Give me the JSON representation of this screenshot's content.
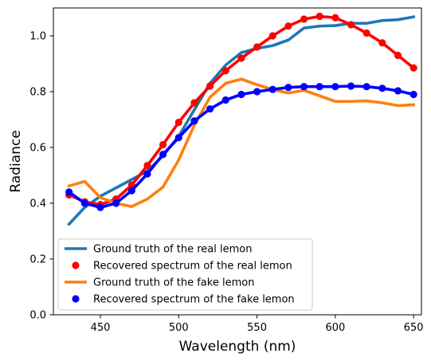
{
  "chart_data": {
    "type": "line",
    "title": "",
    "xlabel": "Wavelength (nm)",
    "ylabel": "Radiance",
    "xlim": [
      420,
      655
    ],
    "ylim": [
      0.0,
      1.1
    ],
    "xticks": [
      450,
      500,
      550,
      600,
      650
    ],
    "yticks": [
      0.0,
      0.2,
      0.4,
      0.6,
      0.8,
      1.0
    ],
    "xtick_labels": [
      "450",
      "500",
      "550",
      "600",
      "650"
    ],
    "ytick_labels": [
      "0.0",
      "0.2",
      "0.4",
      "0.6",
      "0.8",
      "1.0"
    ],
    "grid": false,
    "legend_position": "lower-left",
    "series": [
      {
        "name": "Ground truth of the real lemon",
        "style": "line",
        "color": "#1f77b4",
        "x": [
          430,
          440,
          450,
          460,
          470,
          480,
          490,
          500,
          510,
          520,
          530,
          540,
          550,
          560,
          570,
          580,
          590,
          600,
          610,
          620,
          630,
          640,
          650
        ],
        "y": [
          0.325,
          0.385,
          0.425,
          0.455,
          0.485,
          0.515,
          0.57,
          0.64,
          0.735,
          0.83,
          0.895,
          0.94,
          0.955,
          0.965,
          0.985,
          1.028,
          1.035,
          1.037,
          1.045,
          1.045,
          1.055,
          1.058,
          1.068
        ]
      },
      {
        "name": "Recovered spectrum of the real lemon",
        "style": "line-markers",
        "color": "#ff0000",
        "x": [
          430,
          440,
          450,
          460,
          470,
          480,
          490,
          500,
          510,
          520,
          530,
          540,
          550,
          560,
          570,
          580,
          590,
          600,
          610,
          620,
          630,
          640,
          650
        ],
        "y": [
          0.43,
          0.405,
          0.395,
          0.415,
          0.465,
          0.535,
          0.61,
          0.69,
          0.76,
          0.82,
          0.875,
          0.92,
          0.96,
          1.0,
          1.035,
          1.06,
          1.07,
          1.065,
          1.04,
          1.01,
          0.975,
          0.93,
          0.885
        ]
      },
      {
        "name": "Ground truth of the fake lemon",
        "style": "line",
        "color": "#ff7f0e",
        "x": [
          430,
          440,
          450,
          460,
          470,
          480,
          490,
          500,
          510,
          520,
          530,
          540,
          550,
          560,
          570,
          580,
          590,
          600,
          610,
          620,
          630,
          640,
          650
        ],
        "y": [
          0.462,
          0.478,
          0.42,
          0.4,
          0.388,
          0.415,
          0.458,
          0.555,
          0.68,
          0.78,
          0.83,
          0.845,
          0.825,
          0.808,
          0.795,
          0.805,
          0.785,
          0.765,
          0.765,
          0.767,
          0.76,
          0.75,
          0.753
        ]
      },
      {
        "name": "Recovered spectrum of the fake lemon",
        "style": "line-markers",
        "color": "#0000ff",
        "x": [
          430,
          440,
          450,
          460,
          470,
          480,
          490,
          500,
          510,
          520,
          530,
          540,
          550,
          560,
          570,
          580,
          590,
          600,
          610,
          620,
          630,
          640,
          650
        ],
        "y": [
          0.44,
          0.4,
          0.385,
          0.4,
          0.445,
          0.505,
          0.575,
          0.635,
          0.695,
          0.738,
          0.77,
          0.79,
          0.8,
          0.808,
          0.815,
          0.818,
          0.818,
          0.818,
          0.82,
          0.818,
          0.812,
          0.803,
          0.79
        ]
      }
    ]
  }
}
